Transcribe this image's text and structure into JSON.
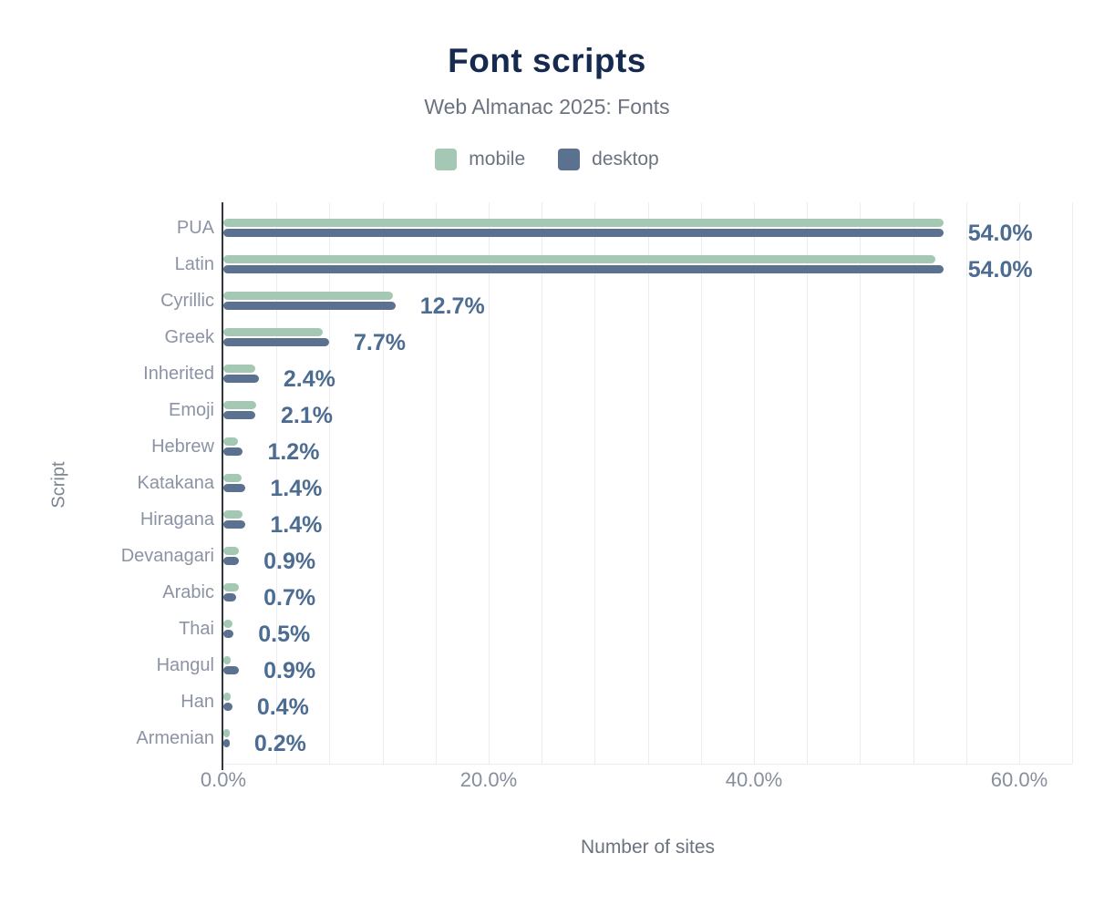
{
  "chart_data": {
    "type": "bar",
    "orientation": "horizontal",
    "title": "Font scripts",
    "subtitle": "Web Almanac 2025: Fonts",
    "xlabel": "Number of sites",
    "ylabel": "Script",
    "categories": [
      "PUA",
      "Latin",
      "Cyrillic",
      "Greek",
      "Inherited",
      "Emoji",
      "Hebrew",
      "Katakana",
      "Hiragana",
      "Devanagari",
      "Arabic",
      "Thai",
      "Hangul",
      "Han",
      "Armenian"
    ],
    "series": [
      {
        "name": "mobile",
        "color": "#a5c8b4",
        "values": [
          54.0,
          53.4,
          12.5,
          7.2,
          2.1,
          2.2,
          0.8,
          1.1,
          1.2,
          0.9,
          0.9,
          0.4,
          0.3,
          0.3,
          0.2
        ]
      },
      {
        "name": "desktop",
        "color": "#5b7190",
        "values": [
          54.0,
          54.0,
          12.7,
          7.7,
          2.4,
          2.1,
          1.2,
          1.4,
          1.4,
          0.9,
          0.7,
          0.5,
          0.9,
          0.4,
          0.2
        ]
      }
    ],
    "bar_labels": [
      "54.0%",
      "54.0%",
      "12.7%",
      "7.7%",
      "2.4%",
      "2.1%",
      "1.2%",
      "1.4%",
      "1.4%",
      "0.9%",
      "0.7%",
      "0.5%",
      "0.9%",
      "0.4%",
      "0.2%"
    ],
    "x_ticks": [
      {
        "label": "0.0%",
        "value": 0
      },
      {
        "label": "20.0%",
        "value": 20
      },
      {
        "label": "40.0%",
        "value": 40
      },
      {
        "label": "60.0%",
        "value": 60
      }
    ],
    "xlim": [
      0,
      64
    ],
    "grid": "vertical minor gridlines every 4%",
    "legend_position": "top-center"
  },
  "colors": {
    "background": "#ffffff",
    "title": "#16294e",
    "subtitle": "#6b7280",
    "category_label": "#8b93a4",
    "tick_label": "#878e9c",
    "value_label": "#4c6c92",
    "axis_line": "#32373e",
    "gridline": "#ededf0",
    "mobile_bar": "#a5c8b4",
    "desktop_bar": "#5b7190"
  }
}
